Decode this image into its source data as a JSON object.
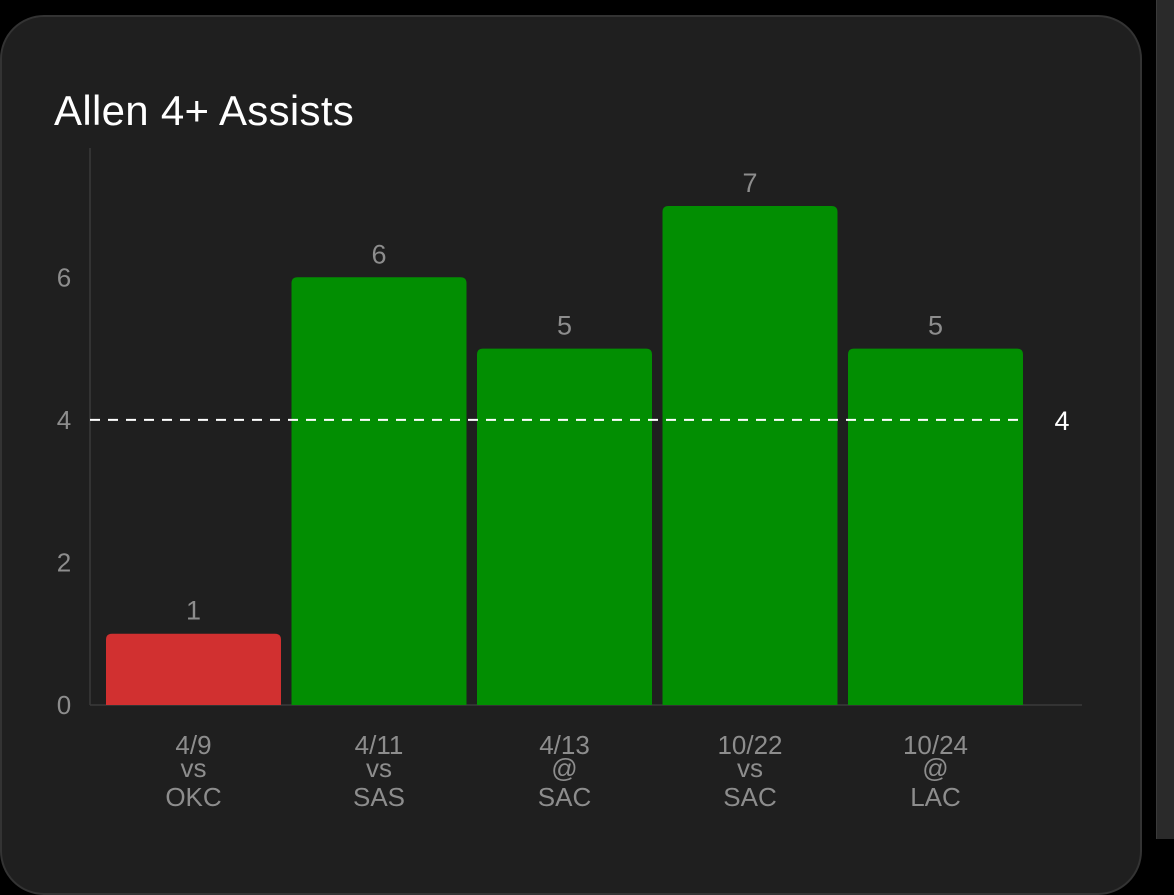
{
  "card": {
    "title": "Allen 4+ Assists"
  },
  "colors": {
    "background": "#000000",
    "card": "#1f1f1f",
    "hit": "#028e02",
    "miss": "#d13030",
    "threshold_line": "#ffffff",
    "muted_text": "#8d8d8d"
  },
  "chart_data": {
    "type": "bar",
    "title": "Allen 4+ Assists",
    "xlabel": "",
    "ylabel": "",
    "categories": [
      [
        "4/9",
        "vs",
        "OKC"
      ],
      [
        "4/11",
        "vs",
        "SAS"
      ],
      [
        "4/13",
        "@",
        "SAC"
      ],
      [
        "10/22",
        "vs",
        "SAC"
      ],
      [
        "10/24",
        "@",
        "LAC"
      ]
    ],
    "values": [
      1,
      6,
      5,
      7,
      5
    ],
    "status": [
      "miss",
      "hit",
      "hit",
      "hit",
      "hit"
    ],
    "threshold": 4,
    "threshold_label": "4",
    "ylim": [
      0,
      7.5
    ],
    "yticks": [
      0,
      2,
      4,
      6
    ],
    "grid": false,
    "data_labels": true
  }
}
